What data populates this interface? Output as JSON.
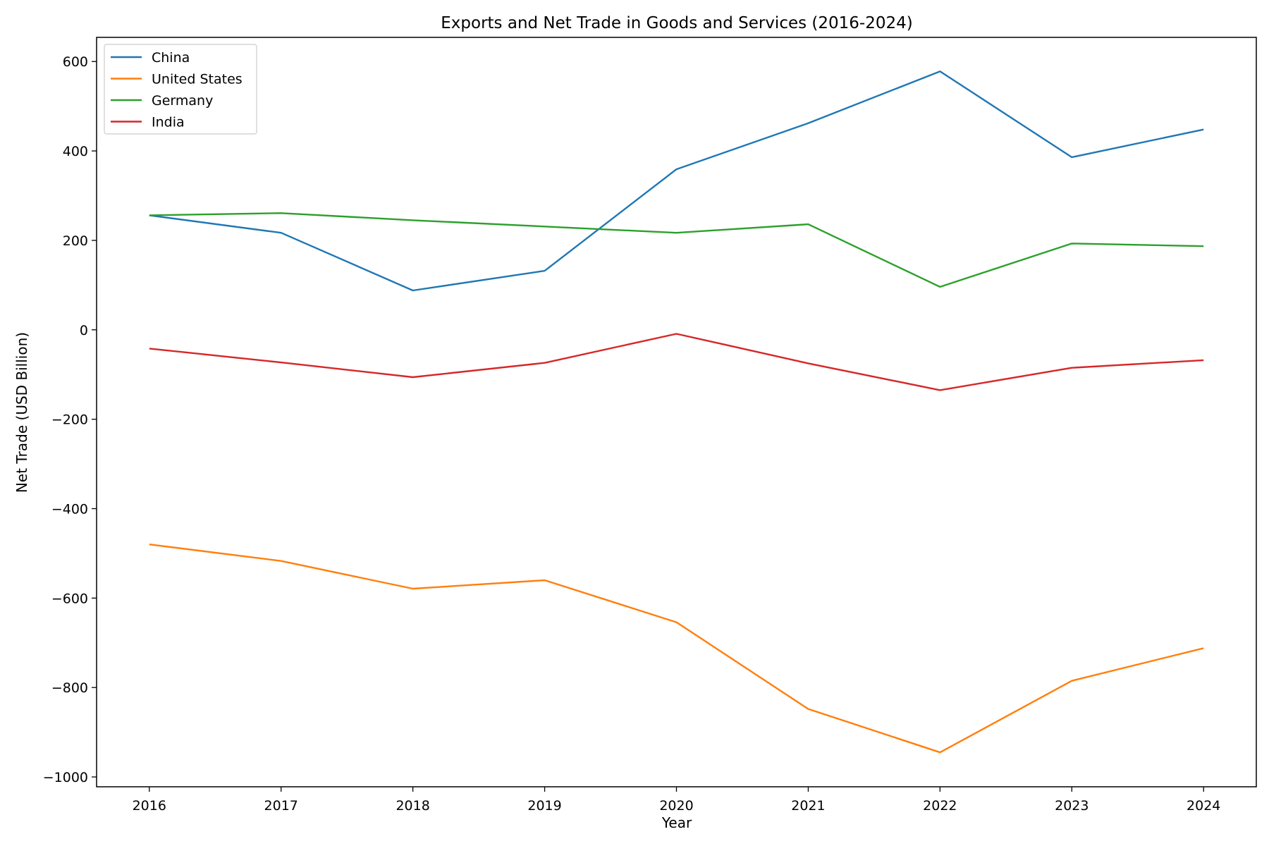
{
  "chart_data": {
    "type": "line",
    "title": "Exports and Net Trade in Goods and Services (2016-2024)",
    "xlabel": "Year",
    "ylabel": "Net Trade (USD Billion)",
    "x": [
      2016,
      2017,
      2018,
      2019,
      2020,
      2021,
      2022,
      2023,
      2024
    ],
    "x_tick_labels": [
      "2016",
      "2017",
      "2018",
      "2019",
      "2020",
      "2021",
      "2022",
      "2023",
      "2024"
    ],
    "y_ticks": [
      600,
      400,
      200,
      0,
      -200,
      -400,
      -600,
      -800,
      -1000
    ],
    "y_tick_labels": [
      "600",
      "400",
      "200",
      "0",
      "−200",
      "−400",
      "−600",
      "−800",
      "−1000"
    ],
    "ylim": [
      -1022,
      654
    ],
    "xlim": [
      2015.6,
      2024.4
    ],
    "grid": false,
    "legend_position": "top-left",
    "series": [
      {
        "name": "China",
        "color": "#1f77b4",
        "values": [
          256,
          217,
          88,
          132,
          359,
          462,
          578,
          386,
          448
        ]
      },
      {
        "name": "United States",
        "color": "#ff7f0e",
        "values": [
          -480,
          -517,
          -579,
          -560,
          -654,
          -848,
          -945,
          -785,
          -712
        ]
      },
      {
        "name": "Germany",
        "color": "#2ca02c",
        "values": [
          256,
          261,
          245,
          231,
          217,
          236,
          96,
          193,
          187
        ]
      },
      {
        "name": "India",
        "color": "#d62728",
        "values": [
          -42,
          -73,
          -106,
          -74,
          -9,
          -75,
          -135,
          -85,
          -68
        ]
      }
    ]
  }
}
